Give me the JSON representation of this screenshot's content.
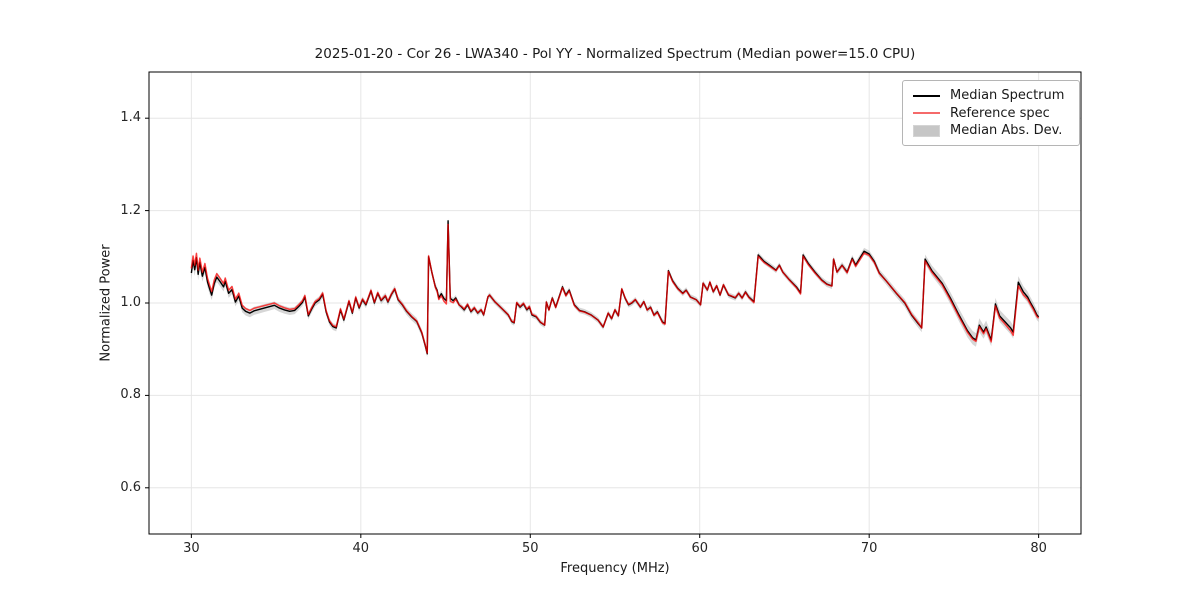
{
  "figure": {
    "background": "#ffffff"
  },
  "chart_data": {
    "type": "line",
    "title": "2025-01-20 - Cor 26 - LWA340 - Pol YY - Normalized Spectrum (Median power=15.0 CPU)",
    "xlabel": "Frequency (MHz)",
    "ylabel": "Normalized Power",
    "xlim": [
      27.5,
      82.5
    ],
    "ylim": [
      0.5,
      1.5
    ],
    "xticks": [
      30,
      40,
      50,
      60,
      70,
      80
    ],
    "xtick_labels": [
      "30",
      "40",
      "50",
      "60",
      "70",
      "80"
    ],
    "yticks": [
      0.6,
      0.8,
      1.0,
      1.2,
      1.4
    ],
    "ytick_labels": [
      "0.6",
      "0.8",
      "1.0",
      "1.2",
      "1.4"
    ],
    "grid": true,
    "grid_color": "#e6e6e6",
    "spine_color": "#000000",
    "legend": {
      "position": "upper right",
      "items": [
        {
          "label": "Median Spectrum",
          "swatch": "line",
          "color": "#000000"
        },
        {
          "label": "Reference spec",
          "swatch": "line",
          "color": "#f56a6a"
        },
        {
          "label": "Median Abs. Dev.",
          "swatch": "patch",
          "color": "#c6c6c6"
        }
      ]
    },
    "series": [
      {
        "name": "Median Spectrum",
        "type": "line",
        "color": "#000000",
        "points": [
          [
            30.0,
            1.065
          ],
          [
            30.1,
            1.092
          ],
          [
            30.2,
            1.072
          ],
          [
            30.3,
            1.098
          ],
          [
            30.4,
            1.062
          ],
          [
            30.5,
            1.088
          ],
          [
            30.65,
            1.058
          ],
          [
            30.8,
            1.077
          ],
          [
            30.95,
            1.046
          ],
          [
            31.1,
            1.028
          ],
          [
            31.2,
            1.017
          ],
          [
            31.35,
            1.042
          ],
          [
            31.5,
            1.056
          ],
          [
            31.7,
            1.046
          ],
          [
            31.9,
            1.035
          ],
          [
            32.0,
            1.047
          ],
          [
            32.2,
            1.021
          ],
          [
            32.4,
            1.029
          ],
          [
            32.6,
            1.002
          ],
          [
            32.8,
            1.015
          ],
          [
            33.0,
            0.989
          ],
          [
            33.2,
            0.982
          ],
          [
            33.45,
            0.978
          ],
          [
            33.7,
            0.983
          ],
          [
            34.0,
            0.986
          ],
          [
            34.3,
            0.989
          ],
          [
            34.6,
            0.992
          ],
          [
            34.9,
            0.995
          ],
          [
            35.2,
            0.989
          ],
          [
            35.5,
            0.985
          ],
          [
            35.8,
            0.982
          ],
          [
            36.1,
            0.984
          ],
          [
            36.35,
            0.993
          ],
          [
            36.55,
            1.001
          ],
          [
            36.7,
            1.013
          ],
          [
            36.9,
            0.972
          ],
          [
            37.1,
            0.987
          ],
          [
            37.3,
            1.0
          ],
          [
            37.55,
            1.007
          ],
          [
            37.75,
            1.019
          ],
          [
            37.95,
            0.981
          ],
          [
            38.15,
            0.959
          ],
          [
            38.35,
            0.949
          ],
          [
            38.55,
            0.946
          ],
          [
            38.8,
            0.985
          ],
          [
            39.0,
            0.963
          ],
          [
            39.3,
            1.003
          ],
          [
            39.5,
            0.978
          ],
          [
            39.7,
            1.011
          ],
          [
            39.9,
            0.989
          ],
          [
            40.1,
            1.007
          ],
          [
            40.3,
            0.996
          ],
          [
            40.6,
            1.026
          ],
          [
            40.8,
            1.0
          ],
          [
            41.0,
            1.021
          ],
          [
            41.2,
            1.005
          ],
          [
            41.45,
            1.015
          ],
          [
            41.6,
            1.002
          ],
          [
            41.8,
            1.018
          ],
          [
            42.0,
            1.03
          ],
          [
            42.2,
            1.007
          ],
          [
            42.45,
            0.996
          ],
          [
            42.7,
            0.982
          ],
          [
            43.0,
            0.97
          ],
          [
            43.3,
            0.96
          ],
          [
            43.6,
            0.935
          ],
          [
            43.8,
            0.908
          ],
          [
            43.92,
            0.89
          ],
          [
            44.0,
            1.1
          ],
          [
            44.2,
            1.065
          ],
          [
            44.4,
            1.035
          ],
          [
            44.5,
            1.028
          ],
          [
            44.6,
            1.011
          ],
          [
            44.75,
            1.02
          ],
          [
            44.9,
            1.01
          ],
          [
            45.05,
            1.005
          ],
          [
            45.15,
            1.178
          ],
          [
            45.28,
            1.01
          ],
          [
            45.45,
            1.005
          ],
          [
            45.6,
            1.011
          ],
          [
            45.8,
            0.996
          ],
          [
            45.95,
            0.991
          ],
          [
            46.1,
            0.985
          ],
          [
            46.3,
            0.996
          ],
          [
            46.5,
            0.981
          ],
          [
            46.7,
            0.989
          ],
          [
            46.9,
            0.978
          ],
          [
            47.1,
            0.985
          ],
          [
            47.25,
            0.974
          ],
          [
            47.5,
            1.013
          ],
          [
            47.6,
            1.017
          ],
          [
            47.9,
            1.003
          ],
          [
            48.1,
            0.996
          ],
          [
            48.4,
            0.985
          ],
          [
            48.7,
            0.974
          ],
          [
            48.9,
            0.96
          ],
          [
            49.05,
            0.957
          ],
          [
            49.2,
            1.0
          ],
          [
            49.4,
            0.991
          ],
          [
            49.6,
            0.998
          ],
          [
            49.8,
            0.985
          ],
          [
            49.95,
            0.991
          ],
          [
            50.1,
            0.974
          ],
          [
            50.35,
            0.97
          ],
          [
            50.6,
            0.958
          ],
          [
            50.85,
            0.952
          ],
          [
            50.95,
            1.002
          ],
          [
            51.1,
            0.985
          ],
          [
            51.3,
            1.011
          ],
          [
            51.5,
            0.991
          ],
          [
            51.9,
            1.035
          ],
          [
            52.1,
            1.017
          ],
          [
            52.3,
            1.028
          ],
          [
            52.6,
            0.996
          ],
          [
            52.9,
            0.984
          ],
          [
            53.2,
            0.981
          ],
          [
            53.6,
            0.974
          ],
          [
            54.0,
            0.963
          ],
          [
            54.3,
            0.948
          ],
          [
            54.6,
            0.978
          ],
          [
            54.8,
            0.966
          ],
          [
            55.0,
            0.985
          ],
          [
            55.2,
            0.972
          ],
          [
            55.4,
            1.03
          ],
          [
            55.6,
            1.01
          ],
          [
            55.8,
            0.996
          ],
          [
            56.0,
            1.0
          ],
          [
            56.2,
            1.007
          ],
          [
            56.5,
            0.991
          ],
          [
            56.7,
            1.003
          ],
          [
            56.9,
            0.985
          ],
          [
            57.1,
            0.991
          ],
          [
            57.3,
            0.974
          ],
          [
            57.5,
            0.981
          ],
          [
            57.8,
            0.959
          ],
          [
            57.95,
            0.956
          ],
          [
            58.15,
            1.07
          ],
          [
            58.4,
            1.048
          ],
          [
            58.7,
            1.032
          ],
          [
            59.0,
            1.021
          ],
          [
            59.2,
            1.028
          ],
          [
            59.45,
            1.013
          ],
          [
            59.8,
            1.007
          ],
          [
            60.05,
            0.996
          ],
          [
            60.2,
            1.043
          ],
          [
            60.45,
            1.028
          ],
          [
            60.6,
            1.045
          ],
          [
            60.8,
            1.024
          ],
          [
            61.0,
            1.037
          ],
          [
            61.2,
            1.017
          ],
          [
            61.4,
            1.039
          ],
          [
            61.7,
            1.017
          ],
          [
            62.1,
            1.011
          ],
          [
            62.3,
            1.021
          ],
          [
            62.5,
            1.011
          ],
          [
            62.7,
            1.024
          ],
          [
            62.9,
            1.013
          ],
          [
            63.2,
            1.003
          ],
          [
            63.45,
            1.104
          ],
          [
            63.8,
            1.09
          ],
          [
            64.1,
            1.082
          ],
          [
            64.5,
            1.071
          ],
          [
            64.7,
            1.082
          ],
          [
            64.9,
            1.067
          ],
          [
            65.3,
            1.05
          ],
          [
            65.7,
            1.035
          ],
          [
            65.95,
            1.022
          ],
          [
            66.1,
            1.104
          ],
          [
            66.4,
            1.086
          ],
          [
            66.8,
            1.067
          ],
          [
            67.2,
            1.05
          ],
          [
            67.5,
            1.041
          ],
          [
            67.8,
            1.037
          ],
          [
            67.9,
            1.095
          ],
          [
            68.1,
            1.067
          ],
          [
            68.4,
            1.082
          ],
          [
            68.7,
            1.067
          ],
          [
            69.0,
            1.097
          ],
          [
            69.2,
            1.082
          ],
          [
            69.5,
            1.1
          ],
          [
            69.7,
            1.112
          ],
          [
            70.0,
            1.106
          ],
          [
            70.3,
            1.09
          ],
          [
            70.6,
            1.065
          ],
          [
            71.0,
            1.048
          ],
          [
            71.6,
            1.021
          ],
          [
            72.1,
            1.0
          ],
          [
            72.5,
            0.974
          ],
          [
            72.9,
            0.955
          ],
          [
            73.1,
            0.946
          ],
          [
            73.3,
            1.095
          ],
          [
            73.7,
            1.07
          ],
          [
            74.3,
            1.043
          ],
          [
            74.8,
            1.01
          ],
          [
            75.3,
            0.974
          ],
          [
            75.8,
            0.94
          ],
          [
            76.1,
            0.925
          ],
          [
            76.3,
            0.92
          ],
          [
            76.5,
            0.952
          ],
          [
            76.75,
            0.937
          ],
          [
            76.9,
            0.948
          ],
          [
            77.2,
            0.92
          ],
          [
            77.45,
            0.998
          ],
          [
            77.7,
            0.972
          ],
          [
            78.0,
            0.96
          ],
          [
            78.35,
            0.946
          ],
          [
            78.5,
            0.937
          ],
          [
            78.8,
            1.045
          ],
          [
            79.1,
            1.024
          ],
          [
            79.35,
            1.013
          ],
          [
            79.5,
            1.002
          ],
          [
            79.7,
            0.989
          ],
          [
            79.9,
            0.974
          ],
          [
            80.0,
            0.97
          ]
        ]
      },
      {
        "name": "Reference spec",
        "type": "line",
        "color": "#ff0000",
        "opacity": 0.72,
        "offset_from_median_anchors": [
          [
            30,
            0.01
          ],
          [
            31,
            0.008
          ],
          [
            33,
            0.006
          ],
          [
            35,
            0.005
          ],
          [
            37,
            0.003
          ],
          [
            40,
            0.002
          ],
          [
            43,
            0.001
          ],
          [
            44,
            0.002
          ],
          [
            45.15,
            -0.008
          ],
          [
            46,
            0.002
          ],
          [
            48,
            0.0
          ],
          [
            50,
            0.002
          ],
          [
            52,
            -0.002
          ],
          [
            54,
            0.0
          ],
          [
            56,
            0.001
          ],
          [
            58,
            -0.002
          ],
          [
            60,
            0.0
          ],
          [
            62,
            0.001
          ],
          [
            63.5,
            -0.003
          ],
          [
            65,
            0.0
          ],
          [
            66.2,
            -0.003
          ],
          [
            68,
            0.0
          ],
          [
            69.7,
            -0.004
          ],
          [
            71,
            0.0
          ],
          [
            73,
            0.002
          ],
          [
            73.3,
            -0.004
          ],
          [
            74,
            -0.003
          ],
          [
            75,
            -0.004
          ],
          [
            76.3,
            -0.003
          ],
          [
            77,
            -0.004
          ],
          [
            78,
            -0.005
          ],
          [
            78.8,
            -0.008
          ],
          [
            79.5,
            -0.004
          ],
          [
            80,
            -0.003
          ]
        ]
      },
      {
        "name": "Median Abs. Dev.",
        "type": "band",
        "color": "#999999",
        "opacity": 0.4,
        "halfwidth_anchors": [
          [
            30,
            0.014
          ],
          [
            31,
            0.011
          ],
          [
            33,
            0.009
          ],
          [
            36,
            0.008
          ],
          [
            40,
            0.007
          ],
          [
            44,
            0.008
          ],
          [
            45.15,
            0.006
          ],
          [
            47,
            0.006
          ],
          [
            50,
            0.006
          ],
          [
            54,
            0.006
          ],
          [
            58,
            0.006
          ],
          [
            62,
            0.006
          ],
          [
            66,
            0.006
          ],
          [
            69,
            0.007
          ],
          [
            71,
            0.008
          ],
          [
            73,
            0.009
          ],
          [
            74,
            0.012
          ],
          [
            75.5,
            0.014
          ],
          [
            76.5,
            0.015
          ],
          [
            77.5,
            0.013
          ],
          [
            78.5,
            0.014
          ],
          [
            79.3,
            0.012
          ],
          [
            80,
            0.011
          ]
        ]
      }
    ]
  }
}
